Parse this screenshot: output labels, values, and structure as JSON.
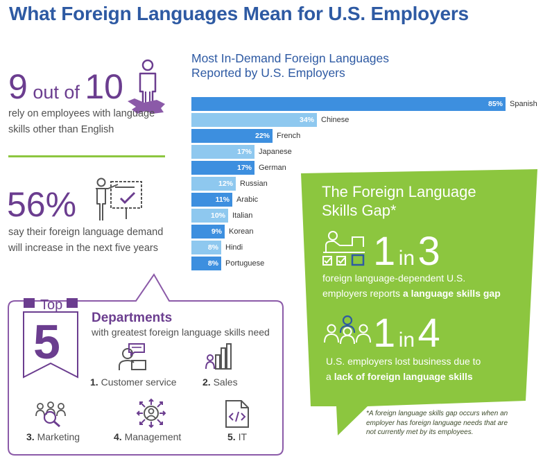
{
  "title": "What Foreign Languages Mean for U.S. Employers",
  "stat1": {
    "number": "9",
    "middle": " out of ",
    "number2": "10",
    "text": "rely on employees with language skills other than English"
  },
  "stat2": {
    "number": "56%",
    "text": "say their foreign language demand will increase in the next five years"
  },
  "chart_title_line1": "Most In-Demand Foreign Languages",
  "chart_title_line2": "Reported by U.S. Employers",
  "chart_data": {
    "type": "bar",
    "orientation": "horizontal",
    "title": "Most In-Demand Foreign Languages Reported by U.S. Employers",
    "categories": [
      "Spanish",
      "Chinese",
      "French",
      "Japanese",
      "German",
      "Russian",
      "Arabic",
      "Italian",
      "Korean",
      "Hindi",
      "Portuguese"
    ],
    "values": [
      85,
      34,
      22,
      17,
      17,
      12,
      11,
      10,
      9,
      8,
      8
    ],
    "value_labels": [
      "85%",
      "34%",
      "22%",
      "17%",
      "17%",
      "12%",
      "11%",
      "10%",
      "9%",
      "8%",
      "8%"
    ],
    "unit": "%",
    "colors": [
      "#3d8fdf",
      "#8ec8ef"
    ]
  },
  "gap": {
    "title_line1": "The Foreign Language",
    "title_line2": "Skills Gap*",
    "ratio1": {
      "a": "1",
      "mid": "in",
      "b": "3"
    },
    "text1_line1": "foreign language-dependent U.S.",
    "text1_line2_pre": "employers reports ",
    "text1_line2_bold": "a language skills gap",
    "ratio2": {
      "a": "1",
      "mid": "in",
      "b": "4"
    },
    "text2_line1": "U.S. employers lost business due to",
    "text2_line2_pre": "a ",
    "text2_line2_bold": "lack of foreign language skills",
    "footnote": "*A foreign language skills gap occurs when an employer has foreign language needs that are not currently met by its employees."
  },
  "departments": {
    "top_label": "Top",
    "top_number": "5",
    "title": "Departments",
    "subtitle": "with greatest foreign language skills need",
    "items": [
      {
        "num": "1.",
        "label": " Customer service",
        "icon": "customer-service-icon"
      },
      {
        "num": "2.",
        "label": " Sales",
        "icon": "sales-chart-icon"
      },
      {
        "num": "3.",
        "label": " Marketing",
        "icon": "marketing-icon"
      },
      {
        "num": "4.",
        "label": " Management",
        "icon": "management-icon"
      },
      {
        "num": "5.",
        "label": " IT",
        "icon": "code-file-icon"
      }
    ]
  },
  "colors": {
    "purple": "#6b3d8f",
    "blue_title": "#2e5aa3",
    "green": "#8cc63f",
    "bar_dark": "#3d8fdf",
    "bar_light": "#8ec8ef"
  }
}
